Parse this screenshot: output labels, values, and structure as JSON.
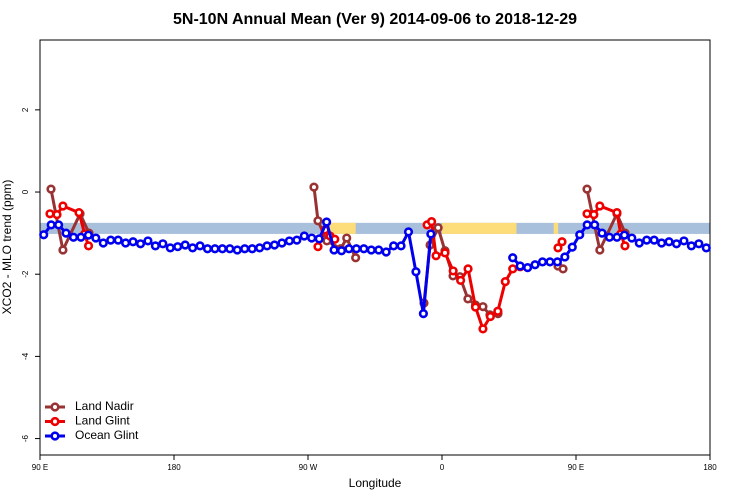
{
  "chart_data": {
    "type": "line",
    "title": "5N-10N Annual Mean (Ver 9)   2014-09-06 to 2018-12-29",
    "x_label": "Longitude",
    "y_label": "XCO2 - MLO trend (ppm)",
    "xlim": [
      90,
      540
    ],
    "xticks": [
      {
        "value": 90,
        "label": "90 E"
      },
      180,
      {
        "value": 270,
        "label": "90 W"
      },
      {
        "value": 360,
        "label": "0"
      },
      {
        "value": 450,
        "label": "90 E"
      },
      {
        "value": 540,
        "label": "180"
      }
    ],
    "ylim": [
      -6.4,
      3.7
    ],
    "yticks": [
      -6,
      -4,
      -2,
      0,
      2
    ],
    "legend": "bottom-left",
    "band": {
      "range": [
        -1.02,
        -0.75
      ],
      "color": "#a9c0dc"
    },
    "regions": {
      "color": "#fddc7a",
      "x": [
        [
          281,
          302
        ],
        [
          360,
          410
        ],
        [
          435,
          438
        ]
      ]
    },
    "series": [
      {
        "name": "Land Nadir",
        "color": "#993333",
        "x": [
          97.4,
          105.4,
          116.9,
          122.9,
          null,
          274,
          276.7,
          282.7,
          292,
          296,
          302,
          null,
          347.9,
          352,
          357.4,
          362,
          367.4,
          372,
          377.4,
          382.5,
          387.5,
          392.2,
          397.6,
          null,
          437.9,
          441.3,
          null,
          457.4,
          466,
          477.5,
          483
        ],
        "values": [
          0.07,
          -1.41,
          -0.53,
          -1.0,
          null,
          0.12,
          -0.7,
          -1.19,
          -1.38,
          -1.12,
          -1.6,
          null,
          -2.7,
          -1.29,
          -0.87,
          -1.43,
          -2.04,
          -2.06,
          -2.6,
          -2.75,
          -2.79,
          -2.99,
          -2.96,
          null,
          -1.8,
          -1.87,
          null,
          0.07,
          -1.41,
          -0.53,
          -1.0
        ]
      },
      {
        "name": "Land Glint",
        "color": "#ee0000",
        "x": [
          96.7,
          101.4,
          105.4,
          116.2,
          120,
          122.6,
          null,
          276.7,
          281.4,
          284.8,
          288,
          null,
          350,
          353,
          356,
          362,
          367.5,
          372.5,
          377.5,
          382.5,
          387.5,
          392.5,
          397.5,
          402.5,
          407.5,
          412.5,
          null,
          437.9,
          440.6,
          null,
          457.4,
          462,
          466,
          477.5,
          480,
          482.9
        ],
        "values": [
          -0.53,
          -0.55,
          -0.34,
          -0.5,
          -1.02,
          -1.31,
          null,
          -1.33,
          -0.92,
          -1.07,
          -1.15,
          null,
          -0.8,
          -0.72,
          -1.55,
          -1.48,
          -1.92,
          -2.15,
          -1.87,
          -2.8,
          -3.33,
          -3.03,
          -2.9,
          -2.18,
          -1.87,
          -1.82,
          null,
          -1.36,
          -1.21,
          null,
          -0.53,
          -0.55,
          -0.34,
          -0.5,
          -1.02,
          -1.31
        ]
      },
      {
        "name": "Ocean Glint",
        "color": "#0000ee",
        "x": [
          92.5,
          97.5,
          102.5,
          107.5,
          112.5,
          117.5,
          122.5,
          127.5,
          132.5,
          137.5,
          142.5,
          147.5,
          152.5,
          157.5,
          162.5,
          167.5,
          172.5,
          177.5,
          182.5,
          187.5,
          192.5,
          197.5,
          202.5,
          207.5,
          212.5,
          217.5,
          222.5,
          227.5,
          232.5,
          237.5,
          242.5,
          247.5,
          252.5,
          257.5,
          262.5,
          267.5,
          272.5,
          277.5,
          282.5,
          287.5,
          292.5,
          297.5,
          302.5,
          307.5,
          312.5,
          317.5,
          322.5,
          327.5,
          332.5,
          337.5,
          342.5,
          347.5,
          352.5,
          357.5,
          362.5,
          367.5,
          372.5,
          377.5,
          382.5,
          387.5,
          392.5,
          397.5,
          402.5,
          407.5,
          412.5,
          417.5,
          422.5,
          427.5,
          432.5,
          437.5,
          442.5,
          447.5,
          452.5,
          457.5,
          462.5,
          467.5,
          472.5,
          477.5,
          482.5,
          487.5,
          492.5,
          497.5,
          502.5,
          507.5,
          512.5,
          517.5,
          522.5,
          527.5,
          532.5,
          537.5
        ],
        "values": [
          -1.04,
          -0.8,
          -0.8,
          -1.0,
          -1.1,
          -1.1,
          -1.05,
          -1.12,
          -1.24,
          -1.17,
          -1.17,
          -1.24,
          -1.21,
          -1.26,
          -1.19,
          -1.31,
          -1.26,
          -1.36,
          -1.33,
          -1.29,
          -1.36,
          -1.31,
          -1.38,
          -1.38,
          -1.38,
          -1.38,
          -1.41,
          -1.38,
          -1.38,
          -1.36,
          -1.31,
          -1.29,
          -1.24,
          -1.19,
          -1.17,
          -1.07,
          -1.12,
          -1.14,
          -0.73,
          -1.41,
          -1.43,
          -1.38,
          -1.38,
          -1.38,
          -1.41,
          -1.41,
          -1.46,
          -1.31,
          -1.31,
          -0.97,
          -1.94,
          -2.96,
          -1.02,
          null,
          null,
          null,
          null,
          null,
          null,
          null,
          null,
          null,
          null,
          -1.6,
          -1.8,
          -1.84,
          -1.77,
          -1.7,
          -1.7,
          -1.7,
          -1.58,
          -1.34,
          -1.04,
          -0.8,
          -0.8,
          -1.0,
          -1.1,
          -1.1,
          -1.05,
          -1.12,
          -1.24,
          -1.17,
          -1.17,
          -1.24,
          -1.21,
          -1.26,
          -1.19,
          -1.31,
          -1.26,
          -1.36
        ]
      }
    ]
  }
}
